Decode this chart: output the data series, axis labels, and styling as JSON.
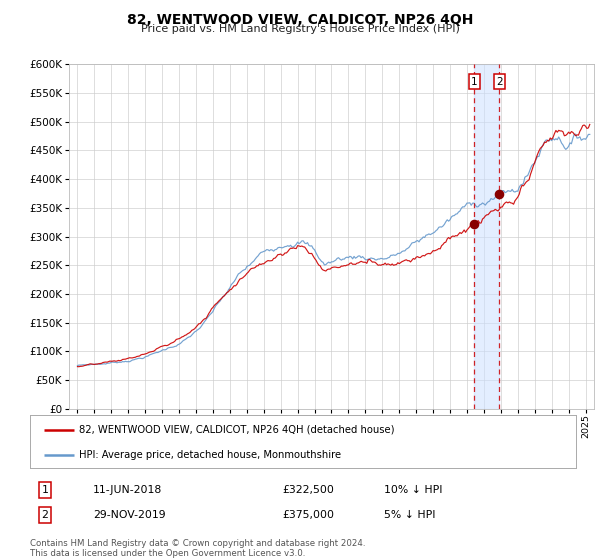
{
  "title": "82, WENTWOOD VIEW, CALDICOT, NP26 4QH",
  "subtitle": "Price paid vs. HM Land Registry's House Price Index (HPI)",
  "legend_line1": "82, WENTWOOD VIEW, CALDICOT, NP26 4QH (detached house)",
  "legend_line2": "HPI: Average price, detached house, Monmouthshire",
  "annotation1": {
    "num": "1",
    "date": "11-JUN-2018",
    "price": "£322,500",
    "note": "10% ↓ HPI"
  },
  "annotation2": {
    "num": "2",
    "date": "29-NOV-2019",
    "price": "£375,000",
    "note": "5% ↓ HPI"
  },
  "footnote": "Contains HM Land Registry data © Crown copyright and database right 2024.\nThis data is licensed under the Open Government Licence v3.0.",
  "sale1_year": 2018.44,
  "sale1_price": 322500,
  "sale2_year": 2019.91,
  "sale2_price": 375000,
  "red_line_color": "#cc0000",
  "blue_line_color": "#6699cc",
  "dashed_color": "#cc0000",
  "shade_color": "#cce0ff",
  "grid_color": "#cccccc",
  "bg_color": "#ffffff",
  "ylim": [
    0,
    600000
  ],
  "yticks": [
    0,
    50000,
    100000,
    150000,
    200000,
    250000,
    300000,
    350000,
    400000,
    450000,
    500000,
    550000,
    600000
  ]
}
